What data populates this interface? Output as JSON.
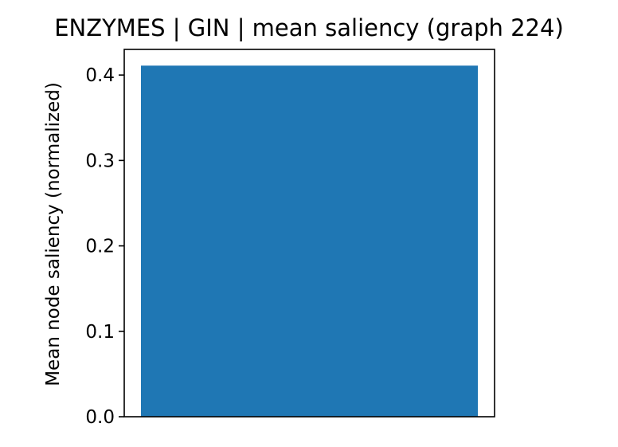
{
  "chart_data": {
    "type": "bar",
    "title": "ENZYMES | GIN | mean saliency (graph 224)",
    "xlabel": "",
    "ylabel": "Mean node saliency (normalized)",
    "categories": [
      ""
    ],
    "values": [
      0.411
    ],
    "ylim": [
      0,
      0.43
    ],
    "yticks": [
      0.0,
      0.1,
      0.2,
      0.3,
      0.4
    ],
    "ytick_labels": [
      "0.0",
      "0.1",
      "0.2",
      "0.3",
      "0.4"
    ],
    "bar_color": "#1f77b4",
    "grid": false,
    "legend": "none"
  }
}
